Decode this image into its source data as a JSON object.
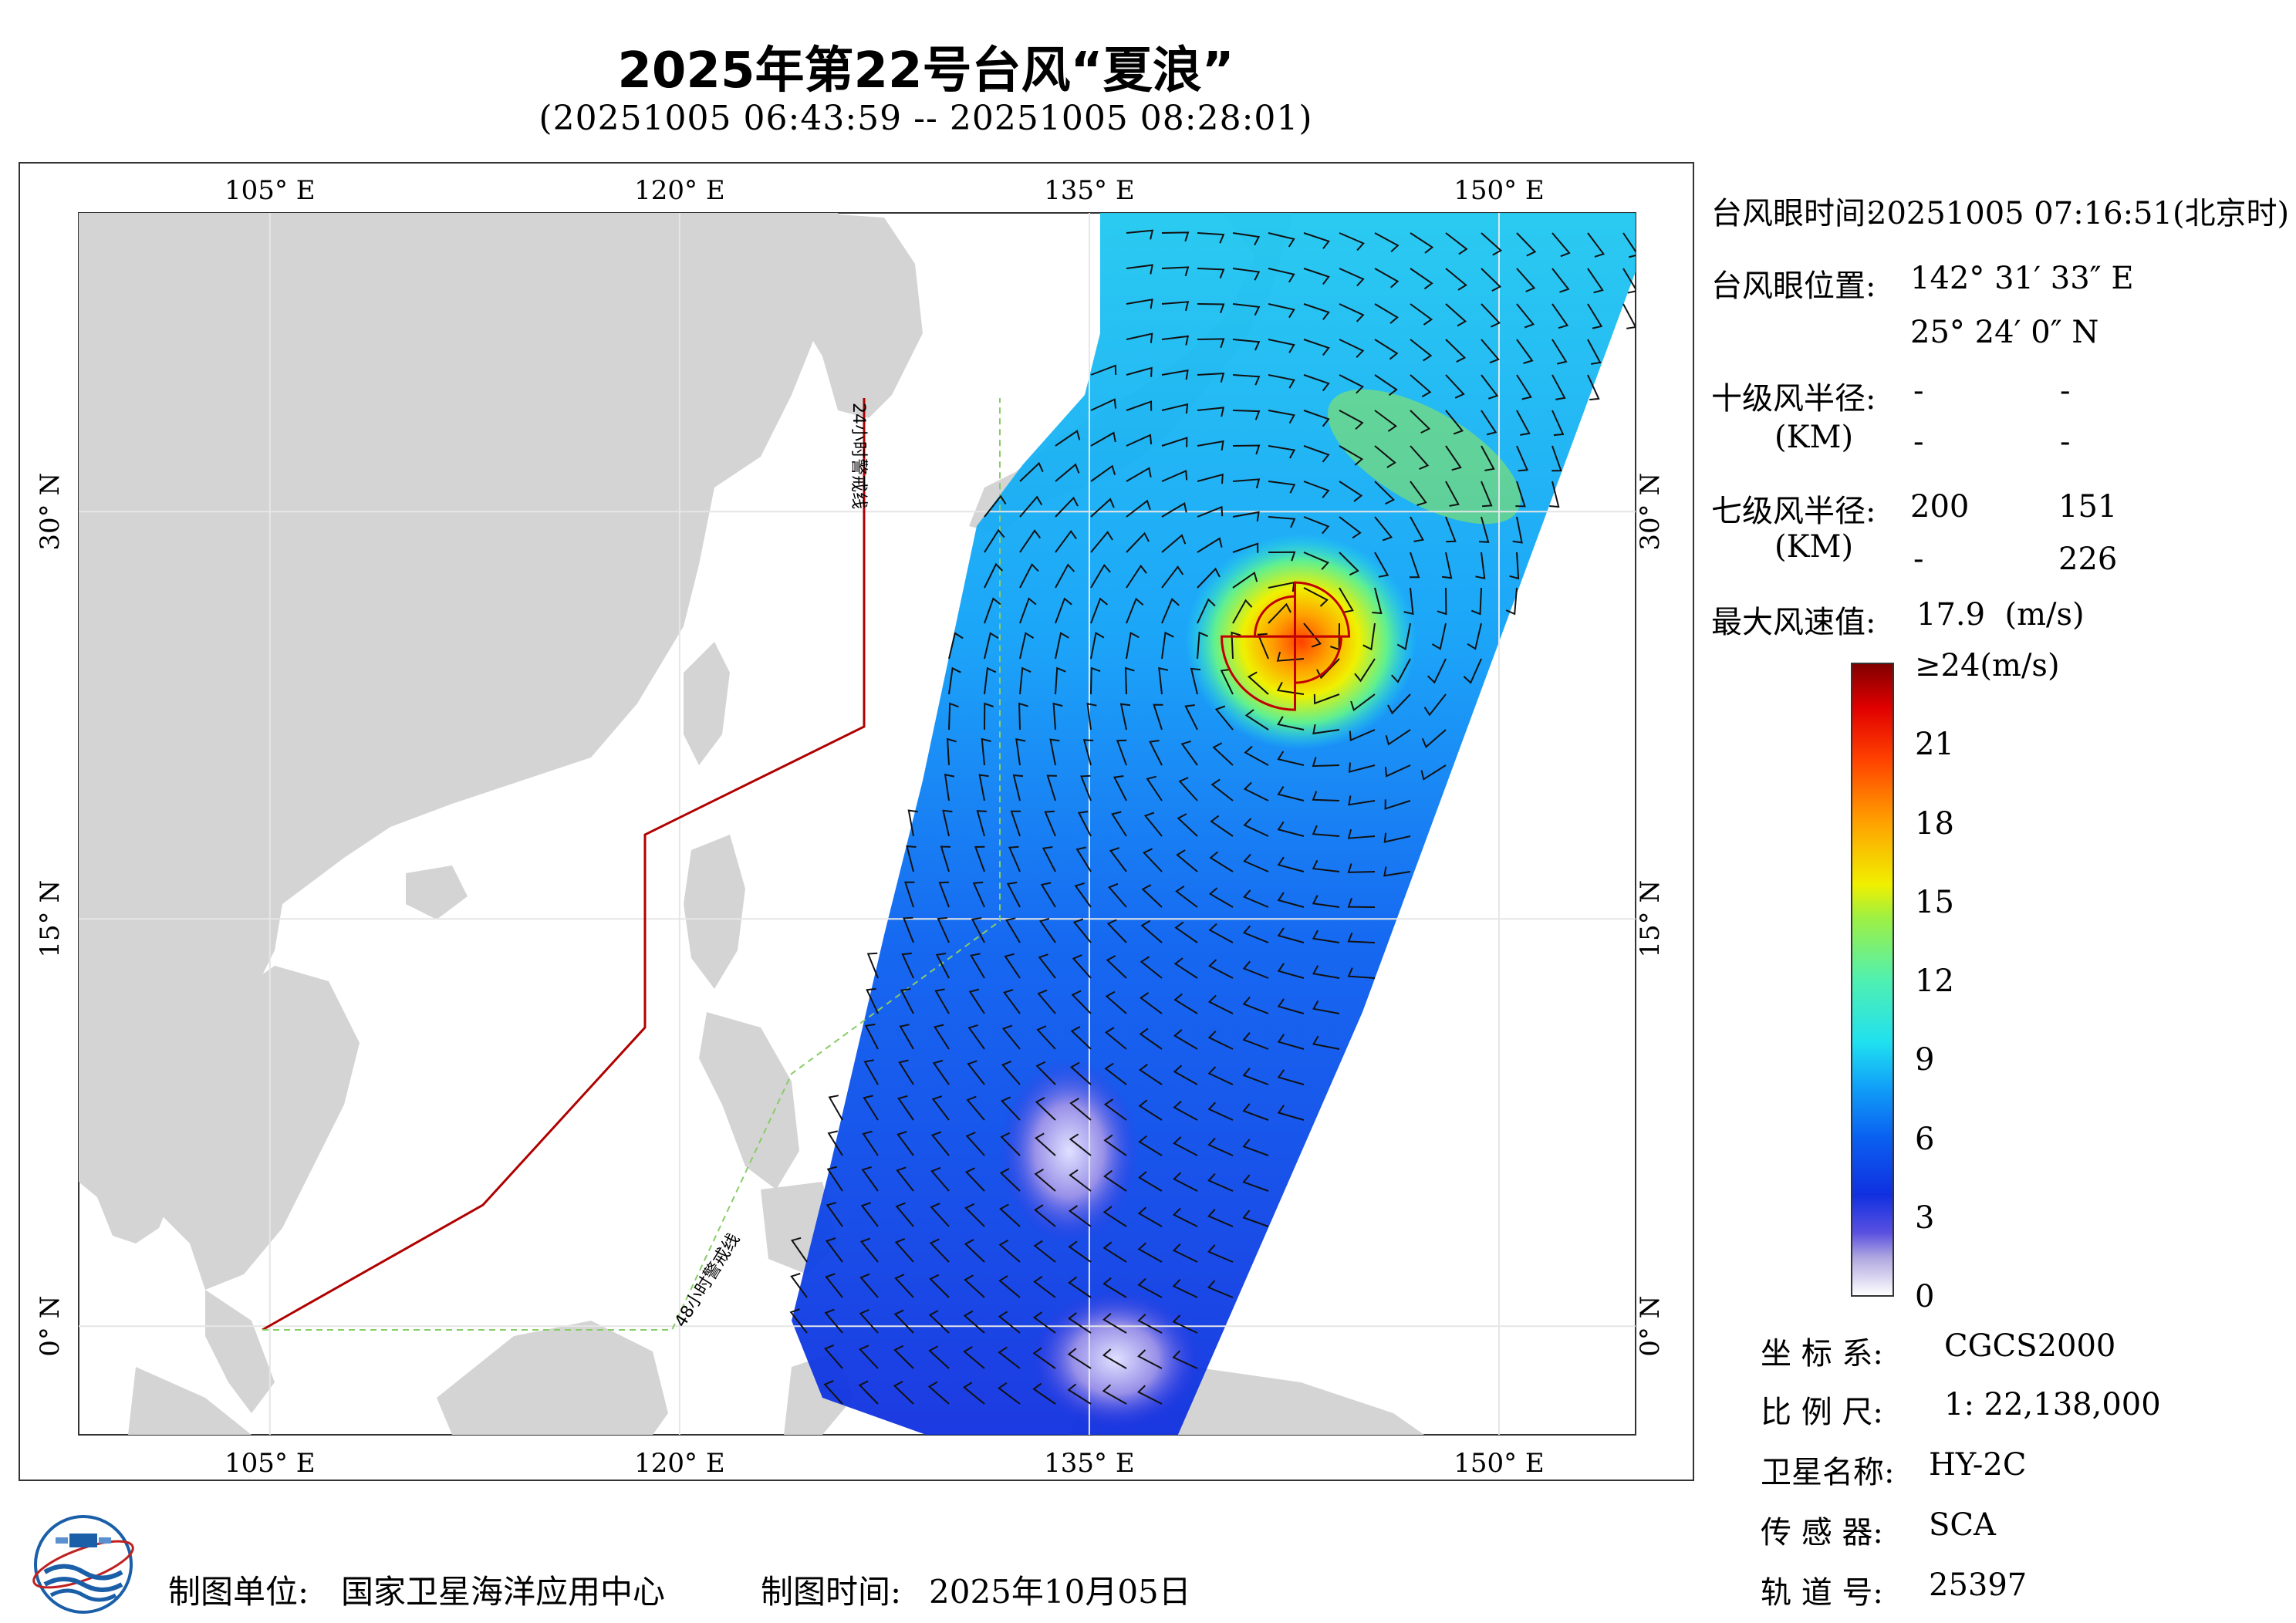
{
  "title": "2025年第22号台风“夏浪”",
  "time_range": "(20251005 06:43:59 -- 20251005 08:28:01)",
  "axes": {
    "x_ticks": [
      "105° E",
      "120° E",
      "135° E",
      "150° E"
    ],
    "y_ticks": [
      "30° N",
      "15° N",
      "0° N"
    ],
    "lon_values": [
      105,
      120,
      135,
      150
    ],
    "lat_values": [
      30,
      15,
      0
    ],
    "lon_range": [
      98,
      155
    ],
    "lat_range": [
      -4,
      41
    ]
  },
  "map_labels": {
    "warning_24h": "24小时警戒线",
    "warning_48h": "48小时警戒线"
  },
  "info": {
    "eye_time_label": "台风眼时间:",
    "eye_time_value": "20251005 07:16:51(北京时)",
    "eye_pos_label": "台风眼位置:",
    "eye_lon": "142° 31′ 33″ E",
    "eye_lat": "25° 24′ 0″ N",
    "r10_label": "十级风半径:",
    "r10_unit": "(KM)",
    "r10_values": [
      "-",
      "-",
      "-",
      "-"
    ],
    "r7_label": "七级风半径:",
    "r7_unit": "(KM)",
    "r7_values": [
      "200",
      "151",
      "-",
      "226"
    ],
    "max_wind_label": "最大风速值:",
    "max_wind_value": "17.9  (m/s)"
  },
  "colorbar": {
    "labels": [
      "≥24(m/s)",
      "21",
      "18",
      "15",
      "12",
      "9",
      "6",
      "3",
      "0"
    ],
    "colors": [
      "#ffffff",
      "#b0a8e0",
      "#5a50e0",
      "#1030e0",
      "#0a60f0",
      "#10a0f8",
      "#20e0f0",
      "#50f0b0",
      "#a0f040",
      "#f0f000",
      "#ffa000",
      "#ff4000",
      "#e00000",
      "#800000"
    ]
  },
  "meta": {
    "coord_label": "坐 标 系:",
    "coord_value": "CGCS2000",
    "scale_label": "比 例 尺:",
    "scale_value": "1: 22,138,000",
    "sat_label": "卫星名称:",
    "sat_value": "HY-2C",
    "sensor_label": "传 感 器:",
    "sensor_value": "SCA",
    "orbit_label": "轨 道 号:",
    "orbit_value": "25397"
  },
  "footer": {
    "org_label": "制图单位:",
    "org_value": "国家卫星海洋应用中心",
    "date_label": "制图时间:",
    "date_value": "2025年10月05日"
  },
  "typhoon_eye": {
    "lon": 142.53,
    "lat": 25.4
  }
}
